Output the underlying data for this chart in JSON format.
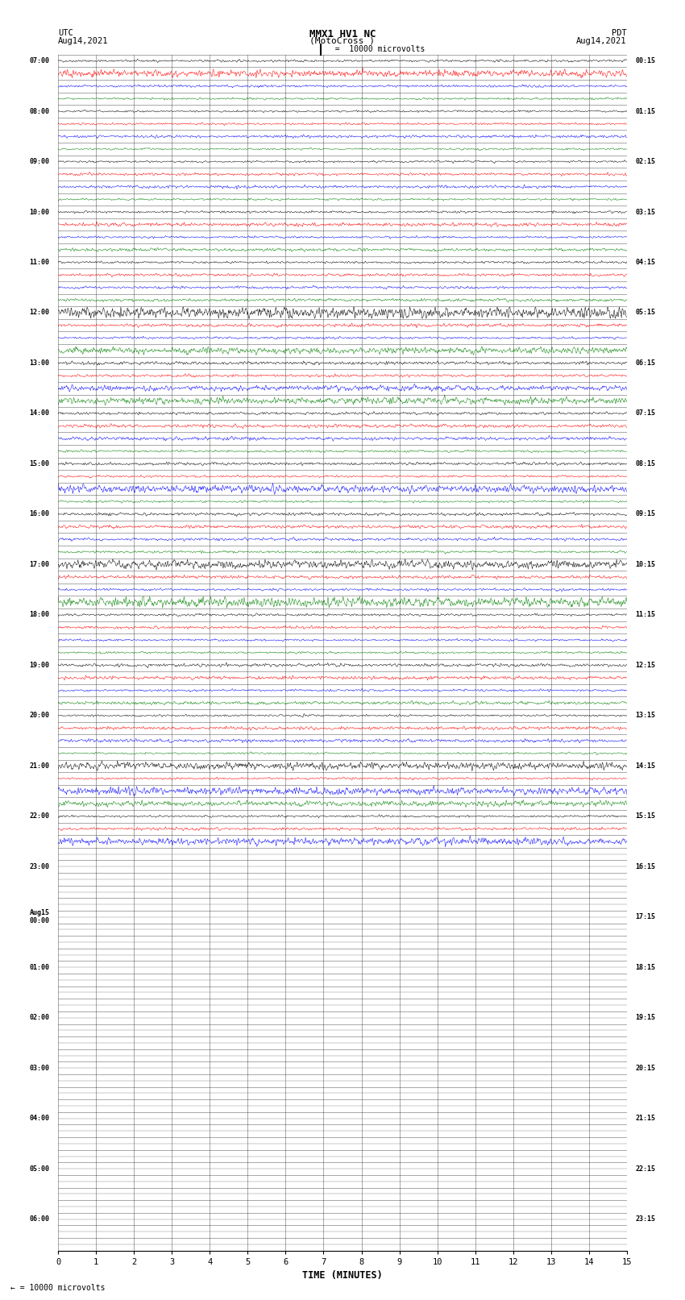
{
  "title_line1": "MMX1 HV1 NC",
  "title_line2": "(MotoCross )",
  "top_left_label": "UTC\nAug14,2021",
  "top_right_label": "PDT\nAug14,2021",
  "scale_label": "  =  10000 microvolts",
  "xlabel": "TIME (MINUTES)",
  "xticks": [
    0,
    1,
    2,
    3,
    4,
    5,
    6,
    7,
    8,
    9,
    10,
    11,
    12,
    13,
    14,
    15
  ],
  "background_color": "#ffffff",
  "line_colors": [
    "black",
    "red",
    "blue",
    "green"
  ],
  "left_utc_times": [
    "07:00",
    "",
    "",
    "",
    "08:00",
    "",
    "",
    "",
    "09:00",
    "",
    "",
    "",
    "10:00",
    "",
    "",
    "",
    "11:00",
    "",
    "",
    "",
    "12:00",
    "",
    "",
    "",
    "13:00",
    "",
    "",
    "",
    "14:00",
    "",
    "",
    "",
    "15:00",
    "",
    "",
    "",
    "16:00",
    "",
    "",
    "",
    "17:00",
    "",
    "",
    "",
    "18:00",
    "",
    "",
    "",
    "19:00",
    "",
    "",
    "",
    "20:00",
    "",
    "",
    "",
    "21:00",
    "",
    "",
    "",
    "22:00",
    "",
    "",
    "",
    "23:00",
    "",
    "",
    "",
    "Aug15\n00:00",
    "",
    "",
    "",
    "01:00",
    "",
    "",
    "",
    "02:00",
    "",
    "",
    "",
    "03:00",
    "",
    "",
    "",
    "04:00",
    "",
    "",
    "",
    "05:00",
    "",
    "",
    "",
    "06:00",
    "",
    ""
  ],
  "right_pdt_times": [
    "00:15",
    "",
    "",
    "",
    "01:15",
    "",
    "",
    "",
    "02:15",
    "",
    "",
    "",
    "03:15",
    "",
    "",
    "",
    "04:15",
    "",
    "",
    "",
    "05:15",
    "",
    "",
    "",
    "06:15",
    "",
    "",
    "",
    "07:15",
    "",
    "",
    "",
    "08:15",
    "",
    "",
    "",
    "09:15",
    "",
    "",
    "",
    "10:15",
    "",
    "",
    "",
    "11:15",
    "",
    "",
    "",
    "12:15",
    "",
    "",
    "",
    "13:15",
    "",
    "",
    "",
    "14:15",
    "",
    "",
    "",
    "15:15",
    "",
    "",
    "",
    "16:15",
    "",
    "",
    "",
    "17:15",
    "",
    "",
    "",
    "18:15",
    "",
    "",
    "",
    "19:15",
    "",
    "",
    "",
    "20:15",
    "",
    "",
    "",
    "21:15",
    "",
    "",
    "",
    "22:15",
    "",
    "",
    "",
    "23:15",
    "",
    ""
  ],
  "n_rows": 95,
  "xmin": 0,
  "xmax": 15,
  "active_rows": 63,
  "seed": 42
}
